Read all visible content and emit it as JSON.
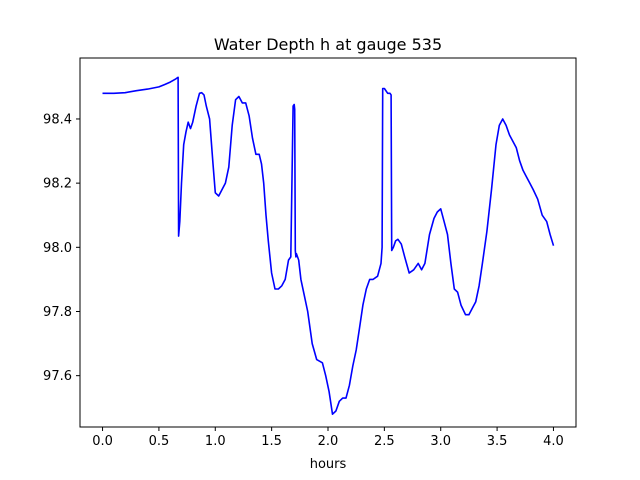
{
  "chart_data": {
    "type": "line",
    "title": "Water Depth h at gauge 535",
    "xlabel": "hours",
    "ylabel": "",
    "xlim": [
      -0.2,
      4.2
    ],
    "ylim": [
      97.44,
      98.59
    ],
    "xticks": [
      0.0,
      0.5,
      1.0,
      1.5,
      2.0,
      2.5,
      3.0,
      3.5,
      4.0
    ],
    "xtick_labels": [
      "0.0",
      "0.5",
      "1.0",
      "1.5",
      "2.0",
      "2.5",
      "3.0",
      "3.5",
      "4.0"
    ],
    "yticks": [
      97.6,
      97.8,
      98.0,
      98.2,
      98.4
    ],
    "ytick_labels": [
      "97.6",
      "97.8",
      "98.0",
      "98.2",
      "98.4"
    ],
    "grid": false,
    "line_color": "#0000ff",
    "series": [
      {
        "x": [
          0.0,
          0.1,
          0.2,
          0.3,
          0.4,
          0.5,
          0.55,
          0.6,
          0.65,
          0.67,
          0.675,
          0.685,
          0.7,
          0.72,
          0.74,
          0.76,
          0.78,
          0.8,
          0.83,
          0.86,
          0.88,
          0.9,
          0.92,
          0.95,
          0.98,
          1.0,
          1.03,
          1.06,
          1.09,
          1.12,
          1.15,
          1.18,
          1.21,
          1.24,
          1.27,
          1.3,
          1.33,
          1.36,
          1.39,
          1.41,
          1.43,
          1.45,
          1.47,
          1.5,
          1.53,
          1.56,
          1.59,
          1.62,
          1.65,
          1.67,
          1.69,
          1.7,
          1.705,
          1.71,
          1.715,
          1.72,
          1.74,
          1.76,
          1.79,
          1.82,
          1.86,
          1.9,
          1.95,
          1.98,
          2.01,
          2.04,
          2.07,
          2.1,
          2.13,
          2.16,
          2.19,
          2.22,
          2.25,
          2.28,
          2.31,
          2.34,
          2.37,
          2.4,
          2.44,
          2.47,
          2.48,
          2.485,
          2.5,
          2.53,
          2.55,
          2.56,
          2.565,
          2.58,
          2.6,
          2.62,
          2.65,
          2.68,
          2.72,
          2.76,
          2.8,
          2.83,
          2.86,
          2.9,
          2.94,
          2.97,
          3.0,
          3.03,
          3.06,
          3.09,
          3.12,
          3.15,
          3.18,
          3.22,
          3.25,
          3.28,
          3.31,
          3.34,
          3.37,
          3.41,
          3.45,
          3.49,
          3.52,
          3.55,
          3.58,
          3.61,
          3.64,
          3.67,
          3.7,
          3.73,
          3.76,
          3.79,
          3.82,
          3.86,
          3.9,
          3.94,
          3.97,
          4.0
        ],
        "y": [
          98.48,
          98.48,
          98.482,
          98.488,
          98.493,
          98.5,
          98.507,
          98.515,
          98.525,
          98.53,
          98.035,
          98.08,
          98.2,
          98.32,
          98.36,
          98.39,
          98.37,
          98.39,
          98.44,
          98.48,
          98.482,
          98.475,
          98.44,
          98.4,
          98.26,
          98.17,
          98.16,
          98.18,
          98.2,
          98.25,
          98.38,
          98.46,
          98.47,
          98.45,
          98.45,
          98.41,
          98.34,
          98.29,
          98.29,
          98.26,
          98.2,
          98.1,
          98.02,
          97.92,
          97.87,
          97.87,
          97.88,
          97.9,
          97.96,
          97.97,
          98.44,
          98.445,
          98.43,
          97.99,
          97.97,
          97.98,
          97.96,
          97.9,
          97.85,
          97.8,
          97.7,
          97.65,
          97.64,
          97.6,
          97.55,
          97.48,
          97.49,
          97.52,
          97.53,
          97.53,
          97.57,
          97.63,
          97.68,
          97.75,
          97.82,
          97.87,
          97.9,
          97.9,
          97.91,
          97.95,
          98.0,
          98.495,
          98.495,
          98.48,
          98.48,
          98.475,
          97.99,
          98.0,
          98.02,
          98.025,
          98.01,
          97.97,
          97.92,
          97.93,
          97.95,
          97.93,
          97.95,
          98.04,
          98.09,
          98.11,
          98.12,
          98.08,
          98.04,
          97.95,
          97.87,
          97.86,
          97.82,
          97.79,
          97.79,
          97.81,
          97.83,
          97.88,
          97.95,
          98.05,
          98.18,
          98.32,
          98.38,
          98.4,
          98.38,
          98.35,
          98.33,
          98.31,
          98.27,
          98.24,
          98.22,
          98.2,
          98.18,
          98.15,
          98.1,
          98.08,
          98.04,
          98.005
        ]
      }
    ]
  }
}
